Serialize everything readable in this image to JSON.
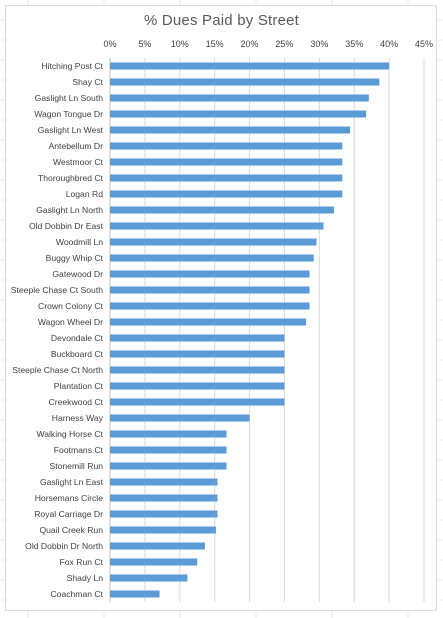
{
  "chart_data": {
    "type": "bar",
    "orientation": "horizontal",
    "title": "% Dues Paid by Street",
    "xlabel": "",
    "ylabel": "",
    "xlim": [
      0,
      45
    ],
    "x_ticks": [
      "0%",
      "5%",
      "10%",
      "15%",
      "20%",
      "25%",
      "30%",
      "35%",
      "40%",
      "45%"
    ],
    "x_axis_position": "top",
    "gridlines": "vertical",
    "legend": "none",
    "bar_color": "#5b9bd5",
    "categories": [
      "Hitching Post Ct",
      "Shay Ct",
      "Gaslight Ln South",
      "Wagon Tongue Dr",
      "Gaslight Ln West",
      "Antebellum Dr",
      "Westmoor Ct",
      "Thoroughbred Ct",
      "Logan Rd",
      "Gaslight Ln North",
      "Old Dobbin Dr East",
      "Woodmill Ln",
      "Buggy Whip Ct",
      "Gatewood Dr",
      "Steeple Chase Ct South",
      "Crown Colony Ct",
      "Wagon Wheel Dr",
      "Devondale Ct",
      "Buckboard Ct",
      "Steeple Chase Ct North",
      "Plantation Ct",
      "Creekwood Ct",
      "Harness Way",
      "Walking Horse Ct",
      "Footmans Ct",
      "Stonemill Run",
      "Gaslight Ln East",
      "Horsemans Circle",
      "Royal Carriage Dr",
      "Quail Creek Run",
      "Old Dobbin Dr North",
      "Fox Run Ct",
      "Shady Ln",
      "Coachman Ct"
    ],
    "values": [
      40,
      38.6,
      37.1,
      36.7,
      34.4,
      33.3,
      33.3,
      33.3,
      33.3,
      32.1,
      30.6,
      29.6,
      29.2,
      28.6,
      28.6,
      28.6,
      28.1,
      25,
      25,
      25,
      25,
      25,
      20,
      16.7,
      16.7,
      16.7,
      15.4,
      15.4,
      15.4,
      15.2,
      13.6,
      12.5,
      11.1,
      7.1
    ]
  }
}
